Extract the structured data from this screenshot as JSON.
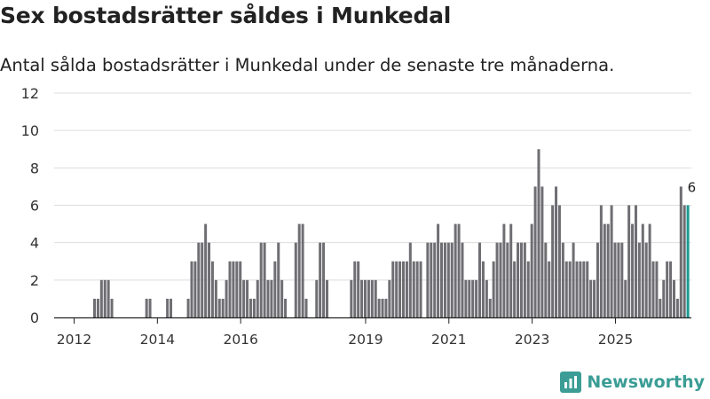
{
  "header": {
    "title": "Sex bostadsrätter såldes i Munkedal",
    "subtitle": "Antal sålda bostadsrätter i Munkedal under de senaste tre månaderna."
  },
  "brand": {
    "name": "Newsworthy"
  },
  "colors": {
    "bar": "#6e6e73",
    "highlight": "#1a9a94",
    "grid": "#dddddd",
    "axis": "#222222"
  },
  "chart_data": {
    "type": "bar",
    "title": "Sex bostadsrätter såldes i Munkedal",
    "xlabel": "",
    "ylabel": "",
    "ylim": [
      0,
      12
    ],
    "yticks": [
      0,
      2,
      4,
      6,
      8,
      10,
      12
    ],
    "xtick_labels": [
      "2012",
      "2014",
      "2016",
      "2019",
      "2021",
      "2023",
      "2025"
    ],
    "xtick_positions": [
      5.5,
      29.5,
      53.5,
      89.5,
      113.5,
      137.5,
      161.5
    ],
    "start_label": "2011-07",
    "frequency": "monthly",
    "values": [
      0,
      0,
      0,
      0,
      0,
      0,
      0,
      0,
      0,
      0,
      0,
      1,
      1,
      2,
      2,
      2,
      1,
      0,
      0,
      0,
      0,
      0,
      0,
      0,
      0,
      0,
      1,
      1,
      0,
      0,
      0,
      0,
      1,
      1,
      0,
      0,
      0,
      0,
      1,
      3,
      3,
      4,
      4,
      5,
      4,
      3,
      2,
      1,
      1,
      2,
      3,
      3,
      3,
      3,
      2,
      2,
      1,
      1,
      2,
      4,
      4,
      2,
      2,
      3,
      4,
      2,
      1,
      0,
      0,
      4,
      5,
      5,
      1,
      0,
      0,
      2,
      4,
      4,
      2,
      0,
      0,
      0,
      0,
      0,
      0,
      2,
      3,
      3,
      2,
      2,
      2,
      2,
      2,
      1,
      1,
      1,
      2,
      3,
      3,
      3,
      3,
      3,
      4,
      3,
      3,
      3,
      0,
      4,
      4,
      4,
      5,
      4,
      4,
      4,
      4,
      5,
      5,
      4,
      2,
      2,
      2,
      2,
      4,
      3,
      2,
      1,
      3,
      4,
      4,
      5,
      4,
      5,
      3,
      4,
      4,
      4,
      3,
      5,
      7,
      9,
      7,
      4,
      3,
      6,
      7,
      6,
      4,
      3,
      3,
      4,
      3,
      3,
      3,
      3,
      2,
      2,
      4,
      6,
      5,
      5,
      6,
      4,
      4,
      4,
      2,
      6,
      5,
      6,
      4,
      5,
      4,
      5,
      3,
      3,
      1,
      2,
      3,
      3,
      2,
      1,
      7,
      6,
      6
    ],
    "highlight_index": 182,
    "annotations": [
      {
        "index": 182,
        "text": "6"
      }
    ]
  }
}
